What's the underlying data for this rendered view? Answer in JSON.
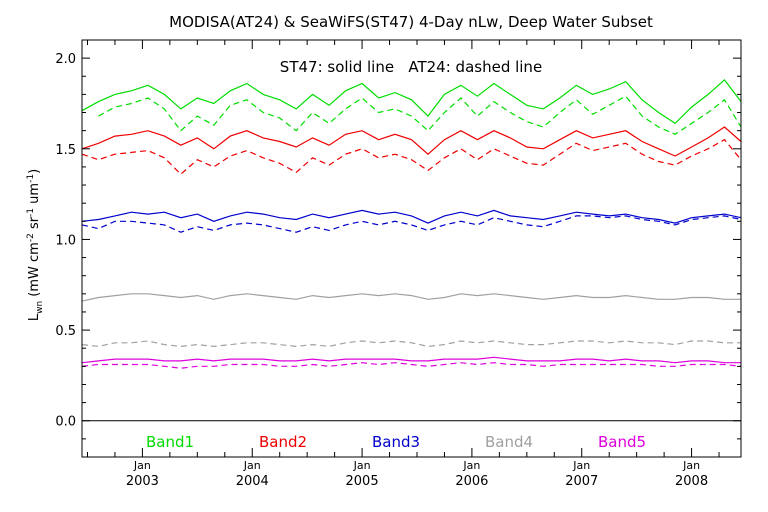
{
  "chart_data": {
    "type": "line",
    "title": "MODISA(AT24) & SeaWiFS(ST47) 4-Day nLw, Deep Water Subset",
    "annotation": "ST47: solid line   AT24: dashed line",
    "ylabel": "L_wn (mW cm^-2 sr^-1 um^-1)",
    "ylabel_parts": {
      "main": "L",
      "sub": "wn",
      "units_1": " (mW cm",
      "sup_1": "-2",
      "units_2": " sr",
      "sup_2": "-1",
      "units_3": " um",
      "sup_3": "-1",
      "units_4": ")"
    },
    "ylim": [
      -0.2,
      2.1
    ],
    "xlim": [
      2002.45,
      2008.45
    ],
    "y_ticks": [
      {
        "value": 0.0,
        "label": "0.0"
      },
      {
        "value": 0.5,
        "label": "0.5"
      },
      {
        "value": 1.0,
        "label": "1.0"
      },
      {
        "value": 1.5,
        "label": "1.5"
      },
      {
        "value": 2.0,
        "label": "2.0"
      }
    ],
    "x_ticks": [
      {
        "value": 2003.0,
        "month": "Jan",
        "year": "2003"
      },
      {
        "value": 2004.0,
        "month": "Jan",
        "year": "2004"
      },
      {
        "value": 2005.0,
        "month": "Jan",
        "year": "2005"
      },
      {
        "value": 2006.0,
        "month": "Jan",
        "year": "2006"
      },
      {
        "value": 2007.0,
        "month": "Jan",
        "year": "2007"
      },
      {
        "value": 2008.0,
        "month": "Jan",
        "year": "2008"
      }
    ],
    "legend": [
      {
        "name": "Band1",
        "color": "#00dd00"
      },
      {
        "name": "Band2",
        "color": "#ee0000"
      },
      {
        "name": "Band3",
        "color": "#0000cc"
      },
      {
        "name": "Band4",
        "color": "#a0a0a0"
      },
      {
        "name": "Band5",
        "color": "#dd00dd"
      }
    ],
    "series": [
      {
        "band": "Band1",
        "instrument": "ST47",
        "style": "solid",
        "color": "#00dd00",
        "x": [
          2002.45,
          2002.6,
          2002.75,
          2002.9,
          2003.05,
          2003.2,
          2003.35,
          2003.5,
          2003.65,
          2003.8,
          2003.95,
          2004.1,
          2004.25,
          2004.4,
          2004.55,
          2004.7,
          2004.85,
          2005.0,
          2005.15,
          2005.3,
          2005.45,
          2005.6,
          2005.75,
          2005.9,
          2006.05,
          2006.2,
          2006.35,
          2006.5,
          2006.65,
          2006.8,
          2006.95,
          2007.1,
          2007.25,
          2007.4,
          2007.55,
          2007.7,
          2007.85,
          2008.0,
          2008.15,
          2008.3,
          2008.45
        ],
        "y": [
          1.71,
          1.76,
          1.8,
          1.82,
          1.85,
          1.8,
          1.72,
          1.78,
          1.75,
          1.82,
          1.86,
          1.8,
          1.77,
          1.72,
          1.8,
          1.74,
          1.82,
          1.86,
          1.78,
          1.81,
          1.77,
          1.68,
          1.8,
          1.85,
          1.79,
          1.86,
          1.8,
          1.74,
          1.72,
          1.78,
          1.85,
          1.8,
          1.83,
          1.87,
          1.77,
          1.7,
          1.64,
          1.73,
          1.8,
          1.88,
          1.76
        ]
      },
      {
        "band": "Band1",
        "instrument": "AT24",
        "style": "dashed",
        "color": "#00dd00",
        "x": [
          2002.6,
          2002.75,
          2002.9,
          2003.05,
          2003.2,
          2003.35,
          2003.5,
          2003.65,
          2003.8,
          2003.95,
          2004.1,
          2004.25,
          2004.4,
          2004.55,
          2004.7,
          2004.85,
          2005.0,
          2005.15,
          2005.3,
          2005.45,
          2005.6,
          2005.75,
          2005.9,
          2006.05,
          2006.2,
          2006.35,
          2006.5,
          2006.65,
          2006.8,
          2006.95,
          2007.1,
          2007.25,
          2007.4,
          2007.55,
          2007.7,
          2007.85,
          2008.0,
          2008.15,
          2008.3,
          2008.45
        ],
        "y": [
          1.68,
          1.73,
          1.75,
          1.78,
          1.72,
          1.6,
          1.68,
          1.63,
          1.74,
          1.77,
          1.7,
          1.67,
          1.6,
          1.7,
          1.64,
          1.72,
          1.78,
          1.7,
          1.72,
          1.68,
          1.6,
          1.7,
          1.78,
          1.68,
          1.76,
          1.7,
          1.65,
          1.62,
          1.7,
          1.77,
          1.69,
          1.74,
          1.79,
          1.68,
          1.62,
          1.58,
          1.64,
          1.7,
          1.77,
          1.62
        ]
      },
      {
        "band": "Band2",
        "instrument": "ST47",
        "style": "solid",
        "color": "#ee0000",
        "x": [
          2002.45,
          2002.6,
          2002.75,
          2002.9,
          2003.05,
          2003.2,
          2003.35,
          2003.5,
          2003.65,
          2003.8,
          2003.95,
          2004.1,
          2004.25,
          2004.4,
          2004.55,
          2004.7,
          2004.85,
          2005.0,
          2005.15,
          2005.3,
          2005.45,
          2005.6,
          2005.75,
          2005.9,
          2006.05,
          2006.2,
          2006.35,
          2006.5,
          2006.65,
          2006.8,
          2006.95,
          2007.1,
          2007.25,
          2007.4,
          2007.55,
          2007.7,
          2007.85,
          2008.0,
          2008.15,
          2008.3,
          2008.45
        ],
        "y": [
          1.5,
          1.53,
          1.57,
          1.58,
          1.6,
          1.57,
          1.52,
          1.56,
          1.5,
          1.57,
          1.6,
          1.56,
          1.54,
          1.51,
          1.56,
          1.52,
          1.58,
          1.6,
          1.55,
          1.58,
          1.55,
          1.47,
          1.55,
          1.6,
          1.55,
          1.6,
          1.56,
          1.51,
          1.5,
          1.55,
          1.6,
          1.56,
          1.58,
          1.6,
          1.54,
          1.5,
          1.46,
          1.51,
          1.56,
          1.62,
          1.54
        ]
      },
      {
        "band": "Band2",
        "instrument": "AT24",
        "style": "dashed",
        "color": "#ee0000",
        "x": [
          2002.45,
          2002.6,
          2002.75,
          2002.9,
          2003.05,
          2003.2,
          2003.35,
          2003.5,
          2003.65,
          2003.8,
          2003.95,
          2004.1,
          2004.25,
          2004.4,
          2004.55,
          2004.7,
          2004.85,
          2005.0,
          2005.15,
          2005.3,
          2005.45,
          2005.6,
          2005.75,
          2005.9,
          2006.05,
          2006.2,
          2006.35,
          2006.5,
          2006.65,
          2006.8,
          2006.95,
          2007.1,
          2007.25,
          2007.4,
          2007.55,
          2007.7,
          2007.85,
          2008.0,
          2008.15,
          2008.3,
          2008.45
        ],
        "y": [
          1.47,
          1.44,
          1.47,
          1.48,
          1.49,
          1.45,
          1.36,
          1.44,
          1.4,
          1.46,
          1.49,
          1.45,
          1.42,
          1.37,
          1.45,
          1.41,
          1.47,
          1.5,
          1.45,
          1.47,
          1.44,
          1.38,
          1.45,
          1.5,
          1.44,
          1.5,
          1.46,
          1.42,
          1.41,
          1.47,
          1.53,
          1.49,
          1.51,
          1.53,
          1.47,
          1.43,
          1.41,
          1.46,
          1.5,
          1.55,
          1.44
        ]
      },
      {
        "band": "Band3",
        "instrument": "ST47",
        "style": "solid",
        "color": "#0000cc",
        "x": [
          2002.45,
          2002.6,
          2002.75,
          2002.9,
          2003.05,
          2003.2,
          2003.35,
          2003.5,
          2003.65,
          2003.8,
          2003.95,
          2004.1,
          2004.25,
          2004.4,
          2004.55,
          2004.7,
          2004.85,
          2005.0,
          2005.15,
          2005.3,
          2005.45,
          2005.6,
          2005.75,
          2005.9,
          2006.05,
          2006.2,
          2006.35,
          2006.5,
          2006.65,
          2006.8,
          2006.95,
          2007.1,
          2007.25,
          2007.4,
          2007.55,
          2007.7,
          2007.85,
          2008.0,
          2008.15,
          2008.3,
          2008.45
        ],
        "y": [
          1.1,
          1.11,
          1.13,
          1.15,
          1.14,
          1.15,
          1.12,
          1.14,
          1.1,
          1.13,
          1.15,
          1.14,
          1.12,
          1.11,
          1.14,
          1.12,
          1.14,
          1.16,
          1.14,
          1.15,
          1.13,
          1.09,
          1.13,
          1.15,
          1.13,
          1.16,
          1.13,
          1.12,
          1.11,
          1.13,
          1.15,
          1.14,
          1.13,
          1.14,
          1.12,
          1.11,
          1.09,
          1.12,
          1.13,
          1.14,
          1.12
        ]
      },
      {
        "band": "Band3",
        "instrument": "AT24",
        "style": "dashed",
        "color": "#0000cc",
        "x": [
          2002.45,
          2002.6,
          2002.75,
          2002.9,
          2003.05,
          2003.2,
          2003.35,
          2003.5,
          2003.65,
          2003.8,
          2003.95,
          2004.1,
          2004.25,
          2004.4,
          2004.55,
          2004.7,
          2004.85,
          2005.0,
          2005.15,
          2005.3,
          2005.45,
          2005.6,
          2005.75,
          2005.9,
          2006.05,
          2006.2,
          2006.35,
          2006.5,
          2006.65,
          2006.8,
          2006.95,
          2007.1,
          2007.25,
          2007.4,
          2007.55,
          2007.7,
          2007.85,
          2008.0,
          2008.15,
          2008.3,
          2008.45
        ],
        "y": [
          1.08,
          1.06,
          1.1,
          1.1,
          1.09,
          1.08,
          1.04,
          1.07,
          1.05,
          1.08,
          1.09,
          1.08,
          1.06,
          1.04,
          1.07,
          1.05,
          1.08,
          1.1,
          1.08,
          1.1,
          1.08,
          1.05,
          1.08,
          1.1,
          1.08,
          1.12,
          1.1,
          1.08,
          1.07,
          1.1,
          1.13,
          1.13,
          1.12,
          1.13,
          1.11,
          1.1,
          1.08,
          1.11,
          1.12,
          1.13,
          1.11
        ]
      },
      {
        "band": "Band4",
        "instrument": "ST47",
        "style": "solid",
        "color": "#a0a0a0",
        "x": [
          2002.45,
          2002.6,
          2002.75,
          2002.9,
          2003.05,
          2003.2,
          2003.35,
          2003.5,
          2003.65,
          2003.8,
          2003.95,
          2004.1,
          2004.25,
          2004.4,
          2004.55,
          2004.7,
          2004.85,
          2005.0,
          2005.15,
          2005.3,
          2005.45,
          2005.6,
          2005.75,
          2005.9,
          2006.05,
          2006.2,
          2006.35,
          2006.5,
          2006.65,
          2006.8,
          2006.95,
          2007.1,
          2007.25,
          2007.4,
          2007.55,
          2007.7,
          2007.85,
          2008.0,
          2008.15,
          2008.3,
          2008.45
        ],
        "y": [
          0.66,
          0.68,
          0.69,
          0.7,
          0.7,
          0.69,
          0.68,
          0.69,
          0.67,
          0.69,
          0.7,
          0.69,
          0.68,
          0.67,
          0.69,
          0.68,
          0.69,
          0.7,
          0.69,
          0.7,
          0.69,
          0.67,
          0.68,
          0.7,
          0.69,
          0.7,
          0.69,
          0.68,
          0.67,
          0.68,
          0.69,
          0.68,
          0.68,
          0.69,
          0.68,
          0.67,
          0.67,
          0.68,
          0.68,
          0.67,
          0.67
        ]
      },
      {
        "band": "Band4",
        "instrument": "AT24",
        "style": "dashed",
        "color": "#a0a0a0",
        "x": [
          2002.45,
          2002.6,
          2002.75,
          2002.9,
          2003.05,
          2003.2,
          2003.35,
          2003.5,
          2003.65,
          2003.8,
          2003.95,
          2004.1,
          2004.25,
          2004.4,
          2004.55,
          2004.7,
          2004.85,
          2005.0,
          2005.15,
          2005.3,
          2005.45,
          2005.6,
          2005.75,
          2005.9,
          2006.05,
          2006.2,
          2006.35,
          2006.5,
          2006.65,
          2006.8,
          2006.95,
          2007.1,
          2007.25,
          2007.4,
          2007.55,
          2007.7,
          2007.85,
          2008.0,
          2008.15,
          2008.3,
          2008.45
        ],
        "y": [
          0.42,
          0.41,
          0.43,
          0.43,
          0.44,
          0.42,
          0.41,
          0.42,
          0.41,
          0.42,
          0.43,
          0.43,
          0.42,
          0.41,
          0.42,
          0.41,
          0.43,
          0.44,
          0.43,
          0.44,
          0.43,
          0.41,
          0.42,
          0.44,
          0.43,
          0.44,
          0.43,
          0.42,
          0.42,
          0.43,
          0.44,
          0.44,
          0.43,
          0.44,
          0.43,
          0.43,
          0.42,
          0.44,
          0.44,
          0.43,
          0.43
        ]
      },
      {
        "band": "Band5",
        "instrument": "ST47",
        "style": "solid",
        "color": "#dd00dd",
        "x": [
          2002.45,
          2002.6,
          2002.75,
          2002.9,
          2003.05,
          2003.2,
          2003.35,
          2003.5,
          2003.65,
          2003.8,
          2003.95,
          2004.1,
          2004.25,
          2004.4,
          2004.55,
          2004.7,
          2004.85,
          2005.0,
          2005.15,
          2005.3,
          2005.45,
          2005.6,
          2005.75,
          2005.9,
          2006.05,
          2006.2,
          2006.35,
          2006.5,
          2006.65,
          2006.8,
          2006.95,
          2007.1,
          2007.25,
          2007.4,
          2007.55,
          2007.7,
          2007.85,
          2008.0,
          2008.15,
          2008.3,
          2008.45
        ],
        "y": [
          0.32,
          0.33,
          0.34,
          0.34,
          0.34,
          0.33,
          0.33,
          0.34,
          0.33,
          0.34,
          0.34,
          0.34,
          0.33,
          0.33,
          0.34,
          0.33,
          0.34,
          0.34,
          0.34,
          0.34,
          0.33,
          0.33,
          0.34,
          0.34,
          0.34,
          0.35,
          0.34,
          0.33,
          0.33,
          0.33,
          0.34,
          0.34,
          0.33,
          0.34,
          0.33,
          0.33,
          0.32,
          0.33,
          0.33,
          0.32,
          0.32
        ]
      },
      {
        "band": "Band5",
        "instrument": "AT24",
        "style": "dashed",
        "color": "#dd00dd",
        "x": [
          2002.45,
          2002.6,
          2002.75,
          2002.9,
          2003.05,
          2003.2,
          2003.35,
          2003.5,
          2003.65,
          2003.8,
          2003.95,
          2004.1,
          2004.25,
          2004.4,
          2004.55,
          2004.7,
          2004.85,
          2005.0,
          2005.15,
          2005.3,
          2005.45,
          2005.6,
          2005.75,
          2005.9,
          2006.05,
          2006.2,
          2006.35,
          2006.5,
          2006.65,
          2006.8,
          2006.95,
          2007.1,
          2007.25,
          2007.4,
          2007.55,
          2007.7,
          2007.85,
          2008.0,
          2008.15,
          2008.3,
          2008.45
        ],
        "y": [
          0.3,
          0.31,
          0.31,
          0.31,
          0.31,
          0.3,
          0.29,
          0.3,
          0.3,
          0.31,
          0.31,
          0.31,
          0.3,
          0.3,
          0.31,
          0.3,
          0.31,
          0.32,
          0.31,
          0.32,
          0.31,
          0.3,
          0.31,
          0.32,
          0.31,
          0.32,
          0.31,
          0.31,
          0.3,
          0.31,
          0.31,
          0.31,
          0.31,
          0.31,
          0.31,
          0.3,
          0.3,
          0.31,
          0.31,
          0.31,
          0.3
        ]
      }
    ]
  }
}
